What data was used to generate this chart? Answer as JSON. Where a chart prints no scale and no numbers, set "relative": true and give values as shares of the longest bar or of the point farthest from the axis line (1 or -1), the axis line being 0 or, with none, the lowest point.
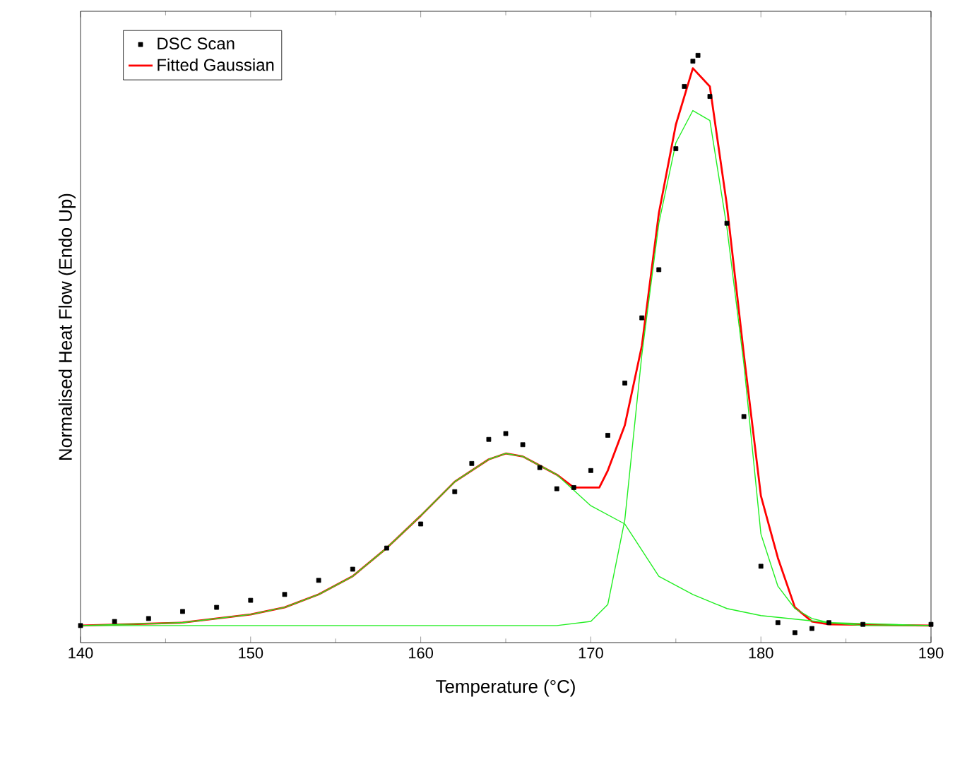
{
  "chart_data": {
    "type": "line",
    "relative": true,
    "xlabel": "Temperature (°C)",
    "ylabel": "Normalised Heat Flow (Endo Up)",
    "xlim": [
      140,
      190
    ],
    "xticks": [
      140,
      150,
      160,
      170,
      180,
      190
    ],
    "legend": "top left",
    "grid": false,
    "series": [
      {
        "name": "DSC Scan",
        "type": "scatter",
        "marker": "square",
        "color": "#000000",
        "x": [
          140,
          142,
          144,
          146,
          148,
          150,
          152,
          154,
          156,
          158,
          160,
          162,
          163,
          164,
          165,
          166,
          167,
          168,
          169,
          170,
          171,
          172,
          173,
          174,
          175,
          175.5,
          176,
          176.3,
          177,
          178,
          179,
          180,
          181,
          182,
          183,
          184,
          186,
          190
        ],
        "values": [
          0.029,
          0.036,
          0.041,
          0.053,
          0.06,
          0.072,
          0.082,
          0.106,
          0.125,
          0.161,
          0.202,
          0.257,
          0.305,
          0.346,
          0.356,
          0.337,
          0.298,
          0.262,
          0.264,
          0.293,
          0.353,
          0.442,
          0.553,
          0.635,
          0.841,
          0.947,
          0.99,
          1.0,
          0.93,
          0.714,
          0.385,
          0.13,
          0.034,
          0.017,
          0.024,
          0.034,
          0.031,
          0.031
        ]
      },
      {
        "name": "Fitted Gaussian",
        "marker": "none",
        "color": "#ff0000",
        "x": [
          140,
          146,
          150,
          152,
          154,
          156,
          158,
          160,
          162,
          164,
          165,
          166,
          168,
          169,
          170,
          170.5,
          171,
          172,
          173,
          174,
          175,
          176,
          177,
          178,
          179,
          180,
          181,
          182,
          183,
          184,
          190
        ],
        "values": [
          0.029,
          0.034,
          0.048,
          0.06,
          0.082,
          0.113,
          0.161,
          0.216,
          0.274,
          0.312,
          0.322,
          0.317,
          0.286,
          0.264,
          0.264,
          0.264,
          0.293,
          0.37,
          0.505,
          0.731,
          0.882,
          0.978,
          0.947,
          0.745,
          0.49,
          0.25,
          0.144,
          0.06,
          0.036,
          0.031,
          0.029
        ]
      },
      {
        "marker": "none",
        "color": "#22ee22",
        "x": [
          140,
          146,
          150,
          152,
          154,
          156,
          158,
          160,
          162,
          164,
          165,
          166,
          168,
          170,
          172,
          174,
          176,
          178,
          180,
          184,
          190
        ],
        "values": [
          0.029,
          0.034,
          0.048,
          0.06,
          0.082,
          0.113,
          0.161,
          0.216,
          0.274,
          0.312,
          0.322,
          0.317,
          0.286,
          0.233,
          0.202,
          0.113,
          0.082,
          0.058,
          0.046,
          0.034,
          0.029
        ]
      },
      {
        "marker": "none",
        "color": "#22ee22",
        "x": [
          140,
          168,
          170,
          171,
          172,
          173,
          174,
          175,
          176,
          177,
          178,
          179,
          180,
          181,
          182,
          183,
          184,
          186,
          190
        ],
        "values": [
          0.029,
          0.029,
          0.036,
          0.065,
          0.209,
          0.49,
          0.714,
          0.851,
          0.906,
          0.889,
          0.707,
          0.474,
          0.185,
          0.096,
          0.058,
          0.041,
          0.034,
          0.029,
          0.029
        ]
      }
    ]
  }
}
